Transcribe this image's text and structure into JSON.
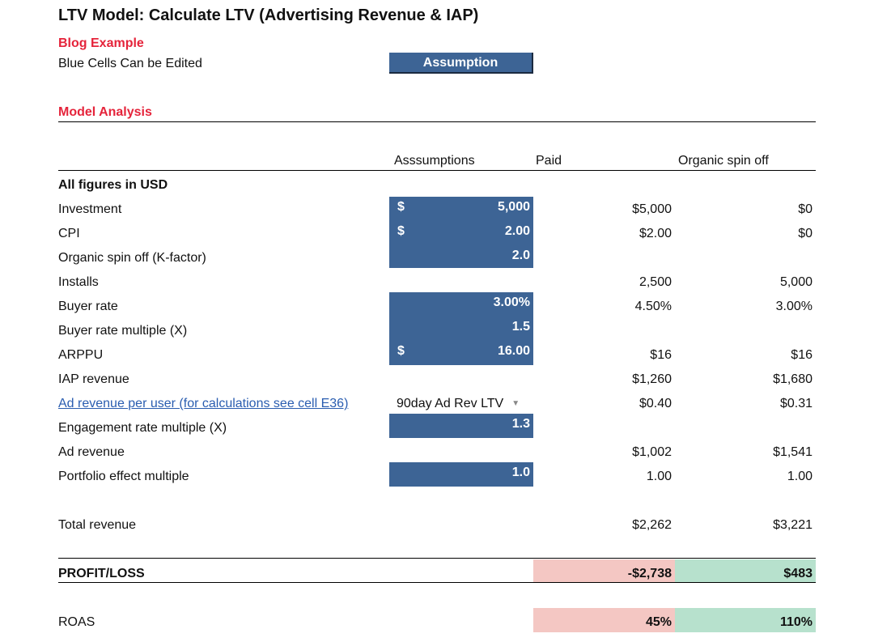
{
  "title": "LTV Model: Calculate LTV (Advertising Revenue & IAP)",
  "blog_example": "Blog Example",
  "blue_cells_note": "Blue Cells Can be Edited",
  "assumption_button": "Assumption",
  "model_analysis": "Model Analysis",
  "columns": {
    "assumptions": "Asssumptions",
    "paid": "Paid",
    "organic": "Organic spin off"
  },
  "all_figures": "All figures in USD",
  "colors": {
    "blue_cell": "#3d6495",
    "red_heading": "#e5243b",
    "loss_bg": "#f4c7c3",
    "gain_bg": "#b7e1cd",
    "link": "#2a5db0"
  },
  "rows": {
    "investment": {
      "label": "Investment",
      "symbol": "$",
      "assumption": "5,000",
      "paid": "$5,000",
      "organic": "$0"
    },
    "cpi": {
      "label": "CPI",
      "symbol": "$",
      "assumption": "2.00",
      "paid": "$2.00",
      "organic": "$0"
    },
    "kfactor": {
      "label": "Organic spin off (K-factor)",
      "assumption": "2.0"
    },
    "installs": {
      "label": "Installs",
      "paid": "2,500",
      "organic": "5,000"
    },
    "buyer_rate": {
      "label": "Buyer rate",
      "assumption": "3.00%",
      "paid": "4.50%",
      "organic": "3.00%"
    },
    "buyer_mult": {
      "label": "Buyer rate multiple (X)",
      "assumption": "1.5"
    },
    "arppu": {
      "label": "ARPPU",
      "symbol": "$",
      "assumption": "16.00",
      "paid": "$16",
      "organic": "$16"
    },
    "iap": {
      "label": "IAP revenue",
      "paid": "$1,260",
      "organic": "$1,680"
    },
    "ad_per_user": {
      "label": "Ad revenue per user (for calculations see cell E36)",
      "dropdown": "90day Ad Rev LTV",
      "paid": "$0.40",
      "organic": "$0.31"
    },
    "engagement": {
      "label": "Engagement rate multiple (X)",
      "assumption": "1.3"
    },
    "ad_revenue": {
      "label": "Ad revenue",
      "paid": "$1,002",
      "organic": "$1,541"
    },
    "portfolio": {
      "label": "Portfolio effect multiple",
      "assumption": "1.0",
      "paid": "1.00",
      "organic": "1.00"
    },
    "total": {
      "label": "Total revenue",
      "paid": "$2,262",
      "organic": "$3,221"
    },
    "profit": {
      "label": "PROFIT/LOSS",
      "paid": "-$2,738",
      "organic": "$483"
    },
    "roas": {
      "label": "ROAS",
      "paid": "45%",
      "organic": "110%"
    }
  }
}
